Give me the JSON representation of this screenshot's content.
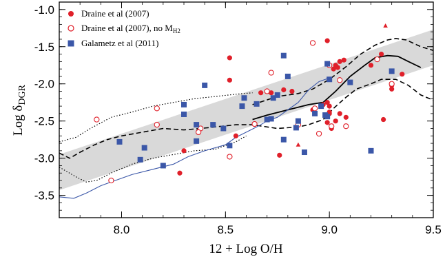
{
  "chart_data": {
    "type": "scatter",
    "xlabel": "12 + Log O/H",
    "ylabel_main": "Log δ",
    "ylabel_sub": "DGR",
    "xlim": [
      7.7,
      9.5
    ],
    "ylim": [
      -3.8,
      -0.9
    ],
    "x_ticks": [
      8.0,
      8.5,
      9.0,
      9.5
    ],
    "x_tick_labels": [
      "8.0",
      "8.5",
      "9.0",
      "9.5"
    ],
    "y_ticks": [
      -3.5,
      -3.0,
      -2.5,
      -2.0,
      -1.5,
      -1.0
    ],
    "y_tick_labels": [
      "-3.5",
      "-3.0",
      "-2.5",
      "-2.0",
      "-1.5",
      "-1.0"
    ],
    "grid": false,
    "legend_position": "top-left",
    "colors": {
      "red": "#e0202a",
      "blue": "#3b57a8",
      "band": "#d9d9d9",
      "black": "#000000"
    },
    "series": [
      {
        "name": "Draine et al (2007)",
        "marker": "filled-circle",
        "color": "#e0202a",
        "points": [
          [
            8.52,
            -1.65
          ],
          [
            8.52,
            -1.95
          ],
          [
            8.67,
            -2.12
          ],
          [
            8.72,
            -2.12
          ],
          [
            8.78,
            -2.08
          ],
          [
            8.82,
            -2.1
          ],
          [
            8.99,
            -1.42
          ],
          [
            8.92,
            -2.35
          ],
          [
            8.97,
            -2.28
          ],
          [
            8.99,
            -2.25
          ],
          [
            9.0,
            -2.3
          ],
          [
            9.0,
            -2.4
          ],
          [
            9.01,
            -2.6
          ],
          [
            9.02,
            -1.8
          ],
          [
            9.03,
            -1.75
          ],
          [
            9.04,
            -1.78
          ],
          [
            9.05,
            -1.7
          ],
          [
            9.07,
            -1.68
          ],
          [
            9.03,
            -2.5
          ],
          [
            9.05,
            -2.4
          ],
          [
            9.08,
            -2.45
          ],
          [
            9.2,
            -1.75
          ],
          [
            9.25,
            -1.6
          ],
          [
            9.3,
            -2.02
          ],
          [
            9.3,
            -2.07
          ],
          [
            9.35,
            -1.87
          ],
          [
            9.26,
            -2.48
          ],
          [
            8.99,
            -2.52
          ],
          [
            8.76,
            -2.96
          ],
          [
            8.55,
            -2.7
          ],
          [
            8.3,
            -2.9
          ],
          [
            8.28,
            -3.2
          ],
          [
            9.0,
            -2.38
          ]
        ]
      },
      {
        "name": "Draine et al (2007), no M",
        "name_sub": "H2",
        "marker": "open-circle",
        "color": "#e0202a",
        "points": [
          [
            7.88,
            -2.48
          ],
          [
            7.95,
            -3.3
          ],
          [
            8.17,
            -2.33
          ],
          [
            8.17,
            -2.55
          ],
          [
            8.38,
            -2.6
          ],
          [
            8.37,
            -2.65
          ],
          [
            8.52,
            -2.98
          ],
          [
            8.64,
            -2.54
          ],
          [
            8.7,
            -2.1
          ],
          [
            8.72,
            -1.85
          ],
          [
            8.92,
            -1.45
          ],
          [
            8.93,
            -2.33
          ],
          [
            8.95,
            -2.67
          ],
          [
            9.0,
            -1.75
          ],
          [
            9.01,
            -2.57
          ],
          [
            9.08,
            -2.57
          ],
          [
            9.23,
            -1.67
          ],
          [
            9.3,
            -2.0
          ],
          [
            8.85,
            -2.55
          ],
          [
            9.05,
            -1.95
          ]
        ]
      },
      {
        "name": "Draine et al (2007)",
        "marker": "filled-triangle",
        "color": "#e0202a",
        "legend": false,
        "points": [
          [
            9.27,
            -1.22
          ],
          [
            8.85,
            -2.82
          ]
        ]
      },
      {
        "name": "Galametz et al (2011)",
        "marker": "filled-square",
        "color": "#3b57a8",
        "points": [
          [
            7.99,
            -2.78
          ],
          [
            8.09,
            -3.02
          ],
          [
            8.11,
            -2.86
          ],
          [
            8.2,
            -3.1
          ],
          [
            8.3,
            -2.28
          ],
          [
            8.3,
            -2.41
          ],
          [
            8.36,
            -2.55
          ],
          [
            8.36,
            -2.77
          ],
          [
            8.4,
            -2.02
          ],
          [
            8.44,
            -2.55
          ],
          [
            8.49,
            -2.6
          ],
          [
            8.52,
            -2.83
          ],
          [
            8.58,
            -2.3
          ],
          [
            8.59,
            -2.19
          ],
          [
            8.65,
            -2.27
          ],
          [
            8.7,
            -2.48
          ],
          [
            8.72,
            -2.47
          ],
          [
            8.73,
            -2.19
          ],
          [
            8.75,
            -2.15
          ],
          [
            8.78,
            -1.62
          ],
          [
            8.78,
            -2.75
          ],
          [
            8.8,
            -1.9
          ],
          [
            8.84,
            -2.59
          ],
          [
            8.85,
            -2.5
          ],
          [
            8.88,
            -2.92
          ],
          [
            8.93,
            -2.4
          ],
          [
            8.96,
            -2.3
          ],
          [
            8.98,
            -2.42
          ],
          [
            8.99,
            -2.44
          ],
          [
            8.99,
            -1.73
          ],
          [
            9.0,
            -1.94
          ],
          [
            9.1,
            -1.98
          ],
          [
            9.2,
            -2.9
          ],
          [
            9.3,
            -1.83
          ]
        ]
      }
    ],
    "lines": [
      {
        "id": "band-upper",
        "points": [
          [
            7.7,
            -2.95
          ],
          [
            9.5,
            -1.27
          ]
        ]
      },
      {
        "id": "band-lower",
        "points": [
          [
            7.7,
            -3.43
          ],
          [
            9.5,
            -1.75
          ]
        ]
      },
      {
        "id": "solid-black",
        "style": "solid",
        "color": "#000000",
        "points": [
          [
            8.63,
            -2.48
          ],
          [
            8.7,
            -2.42
          ],
          [
            8.8,
            -2.35
          ],
          [
            8.9,
            -2.28
          ],
          [
            8.97,
            -2.25
          ],
          [
            9.03,
            -2.1
          ],
          [
            9.1,
            -1.9
          ],
          [
            9.17,
            -1.75
          ],
          [
            9.22,
            -1.65
          ],
          [
            9.28,
            -1.62
          ],
          [
            9.33,
            -1.63
          ],
          [
            9.38,
            -1.7
          ],
          [
            9.44,
            -1.78
          ]
        ]
      },
      {
        "id": "dashed-upper",
        "style": "dashed",
        "color": "#000000",
        "points": [
          [
            8.63,
            -2.28
          ],
          [
            8.75,
            -2.17
          ],
          [
            8.85,
            -2.13
          ],
          [
            8.92,
            -2.07
          ],
          [
            9.0,
            -1.94
          ],
          [
            9.08,
            -1.77
          ],
          [
            9.15,
            -1.6
          ],
          [
            9.22,
            -1.48
          ],
          [
            9.28,
            -1.41
          ],
          [
            9.32,
            -1.39
          ],
          [
            9.37,
            -1.41
          ],
          [
            9.44,
            -1.5
          ],
          [
            9.5,
            -1.55
          ]
        ]
      },
      {
        "id": "dashed-lower",
        "style": "dashed",
        "color": "#000000",
        "points": [
          [
            7.7,
            -2.93
          ],
          [
            7.75,
            -3.0
          ],
          [
            7.8,
            -2.92
          ],
          [
            7.87,
            -2.82
          ],
          [
            7.93,
            -2.75
          ],
          [
            8.0,
            -2.7
          ],
          [
            8.1,
            -2.65
          ],
          [
            8.2,
            -2.6
          ],
          [
            8.3,
            -2.62
          ],
          [
            8.38,
            -2.6
          ],
          [
            8.45,
            -2.58
          ],
          [
            8.55,
            -2.55
          ],
          [
            8.63,
            -2.55
          ],
          [
            8.75,
            -2.6
          ],
          [
            8.85,
            -2.58
          ],
          [
            8.9,
            -2.55
          ],
          [
            8.97,
            -2.48
          ],
          [
            9.02,
            -2.33
          ],
          [
            9.08,
            -2.18
          ],
          [
            9.13,
            -2.07
          ],
          [
            9.2,
            -2.0
          ],
          [
            9.25,
            -1.94
          ],
          [
            9.32,
            -1.94
          ],
          [
            9.38,
            -2.02
          ],
          [
            9.44,
            -2.15
          ],
          [
            9.5,
            -2.22
          ]
        ]
      },
      {
        "id": "dotted-upper",
        "style": "dotted",
        "color": "#000000",
        "points": [
          [
            7.7,
            -2.78
          ],
          [
            7.78,
            -2.72
          ],
          [
            7.85,
            -2.6
          ],
          [
            7.95,
            -2.45
          ],
          [
            8.05,
            -2.38
          ],
          [
            8.15,
            -2.3
          ],
          [
            8.25,
            -2.25
          ],
          [
            8.35,
            -2.2
          ],
          [
            8.45,
            -2.17
          ],
          [
            8.55,
            -2.14
          ],
          [
            8.63,
            -2.12
          ]
        ]
      },
      {
        "id": "dotted-lower",
        "style": "dotted",
        "color": "#000000",
        "points": [
          [
            7.7,
            -3.12
          ],
          [
            7.78,
            -3.25
          ],
          [
            7.83,
            -3.32
          ],
          [
            7.88,
            -3.3
          ],
          [
            7.95,
            -3.2
          ],
          [
            8.05,
            -3.08
          ],
          [
            8.15,
            -3.0
          ],
          [
            8.25,
            -2.95
          ],
          [
            8.35,
            -2.9
          ],
          [
            8.45,
            -2.88
          ],
          [
            8.55,
            -2.78
          ],
          [
            8.6,
            -2.7
          ]
        ]
      },
      {
        "id": "blue-model",
        "style": "solid",
        "color": "#3b57a8",
        "points": [
          [
            7.7,
            -3.52
          ],
          [
            7.77,
            -3.54
          ],
          [
            7.83,
            -3.47
          ],
          [
            7.9,
            -3.37
          ],
          [
            7.97,
            -3.3
          ],
          [
            8.05,
            -3.22
          ],
          [
            8.15,
            -3.15
          ],
          [
            8.25,
            -3.08
          ],
          [
            8.32,
            -2.98
          ],
          [
            8.4,
            -2.9
          ],
          [
            8.5,
            -2.82
          ],
          [
            8.55,
            -2.72
          ],
          [
            8.6,
            -2.65
          ],
          [
            8.65,
            -2.58
          ],
          [
            8.7,
            -2.5
          ],
          [
            8.75,
            -2.45
          ],
          [
            8.8,
            -2.35
          ],
          [
            8.85,
            -2.25
          ],
          [
            8.9,
            -2.08
          ],
          [
            8.95,
            -1.97
          ],
          [
            9.0,
            -1.92
          ]
        ]
      }
    ]
  }
}
